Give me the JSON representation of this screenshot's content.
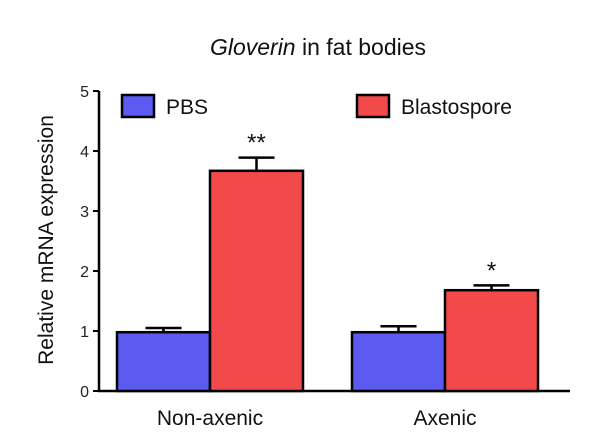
{
  "chart_data": {
    "type": "bar",
    "title_italic": "Gloverin",
    "title_rest": " in fat bodies",
    "xlabel": "",
    "ylabel": "Relative mRNA expression",
    "ylim": [
      0,
      5
    ],
    "yticks": [
      "0",
      "1",
      "2",
      "3",
      "4",
      "5"
    ],
    "categories": [
      "Non-axenic",
      "Axenic"
    ],
    "series": [
      {
        "name": "PBS",
        "color": "#5b5bf2",
        "values": [
          0.98,
          0.98
        ],
        "errors": [
          0.07,
          0.1
        ]
      },
      {
        "name": "Blastospore",
        "color": "#f24a4a",
        "values": [
          3.67,
          1.68
        ],
        "errors": [
          0.22,
          0.08
        ]
      }
    ],
    "significance": [
      "**",
      "*"
    ],
    "legend_position": "top"
  }
}
